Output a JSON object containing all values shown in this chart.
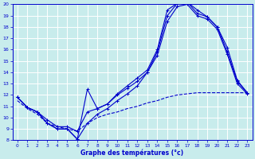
{
  "xlabel": "Graphe des températures (°c)",
  "bg_color": "#c8ecec",
  "line_color": "#0000cc",
  "grid_color": "#ffffff",
  "xlim": [
    -0.5,
    23.5
  ],
  "ylim": [
    8,
    20
  ],
  "yticks": [
    8,
    9,
    10,
    11,
    12,
    13,
    14,
    15,
    16,
    17,
    18,
    19,
    20
  ],
  "xticks": [
    0,
    1,
    2,
    3,
    4,
    5,
    6,
    7,
    8,
    9,
    10,
    11,
    12,
    13,
    14,
    15,
    16,
    17,
    18,
    19,
    20,
    21,
    22,
    23
  ],
  "line1_y": [
    11.8,
    10.9,
    10.5,
    9.5,
    9.0,
    9.0,
    8.1,
    9.5,
    10.3,
    10.8,
    11.5,
    12.1,
    12.8,
    14.0,
    15.8,
    19.0,
    20.1,
    20.2,
    19.5,
    18.9,
    18.0,
    15.8,
    13.2,
    12.2
  ],
  "line2_y": [
    11.8,
    10.9,
    10.5,
    9.5,
    9.0,
    9.0,
    8.1,
    12.5,
    10.8,
    11.2,
    12.1,
    12.8,
    13.5,
    14.2,
    16.0,
    19.5,
    20.1,
    20.2,
    19.2,
    18.9,
    18.0,
    16.2,
    13.3,
    12.2
  ],
  "line3_y": [
    11.8,
    10.9,
    10.5,
    9.8,
    9.2,
    9.2,
    8.8,
    10.5,
    10.8,
    11.2,
    12.0,
    12.6,
    13.2,
    14.0,
    15.5,
    18.5,
    19.8,
    20.0,
    19.0,
    18.7,
    17.8,
    15.6,
    13.0,
    12.1
  ],
  "line4_y": [
    11.5,
    10.8,
    10.3,
    9.5,
    9.2,
    9.0,
    8.8,
    9.5,
    10.0,
    10.3,
    10.5,
    10.8,
    11.0,
    11.3,
    11.5,
    11.8,
    12.0,
    12.1,
    12.2,
    12.2,
    12.2,
    12.2,
    12.2,
    12.2
  ]
}
